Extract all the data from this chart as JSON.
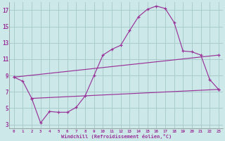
{
  "bg_color": "#cce8e8",
  "grid_color": "#aacccc",
  "line_color": "#993399",
  "xlabel": "Windchill (Refroidissement éolien,°C)",
  "ylim": [
    2.5,
    18.0
  ],
  "xlim": [
    -0.5,
    23.5
  ],
  "yticks": [
    3,
    5,
    7,
    9,
    11,
    13,
    15,
    17
  ],
  "xticks": [
    0,
    1,
    2,
    3,
    4,
    5,
    6,
    7,
    8,
    9,
    10,
    11,
    12,
    13,
    14,
    15,
    16,
    17,
    18,
    19,
    20,
    21,
    22,
    23
  ],
  "line1_x": [
    0,
    1,
    2,
    3,
    4,
    5,
    6,
    7,
    8,
    9,
    10,
    11,
    12,
    13,
    14,
    15,
    16,
    17,
    18,
    19,
    20,
    21,
    22,
    23
  ],
  "line1_y": [
    8.8,
    8.3,
    6.2,
    3.2,
    4.6,
    4.5,
    4.5,
    5.1,
    6.5,
    9.0,
    11.5,
    12.2,
    12.7,
    14.5,
    16.2,
    17.1,
    17.5,
    17.2,
    15.5,
    12.0,
    11.9,
    11.5,
    8.5,
    7.3
  ],
  "line2_x": [
    0,
    23
  ],
  "line2_y": [
    8.8,
    11.5
  ],
  "line3_x": [
    2,
    23
  ],
  "line3_y": [
    6.2,
    7.3
  ],
  "figsize": [
    3.2,
    2.0
  ],
  "dpi": 100
}
